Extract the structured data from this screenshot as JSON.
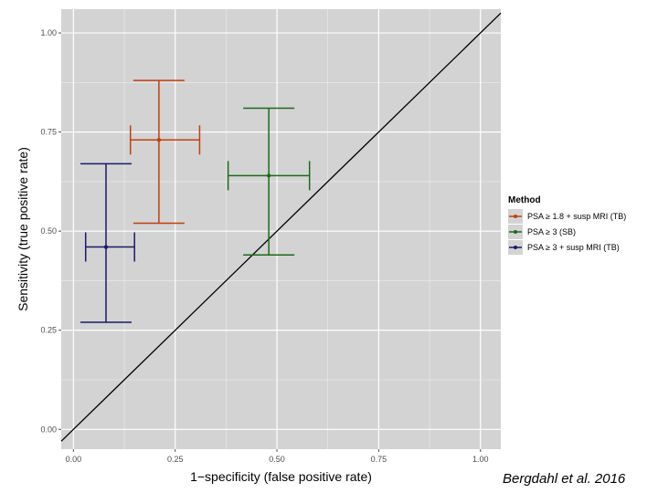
{
  "colors": {
    "panel": "#d3d3d3",
    "grid": "#ffffff",
    "diagonal": "#000000",
    "series": [
      "#c0400f",
      "#1a6b1a",
      "#1a1a6b"
    ]
  },
  "chart_data": {
    "type": "scatter",
    "title": "",
    "xlabel": "1−specificity (false positive rate)",
    "ylabel": "Sensitivity (true positive rate)",
    "xlim": [
      -0.03,
      1.05
    ],
    "ylim": [
      -0.05,
      1.06
    ],
    "xticks": [
      "0.00",
      "0.25",
      "0.50",
      "0.75",
      "1.00"
    ],
    "yticks": [
      "0.00",
      "0.25",
      "0.50",
      "0.75",
      "1.00"
    ],
    "grid": true,
    "reference_line": "diagonal y = x",
    "legend": {
      "title": "Method",
      "placement": "right"
    },
    "series": [
      {
        "name": "PSA ≥ 1.8 + susp MRI (TB)",
        "x": 0.21,
        "y": 0.73,
        "x_low": 0.14,
        "x_high": 0.31,
        "y_low": 0.52,
        "y_high": 0.88
      },
      {
        "name": "PSA ≥ 3 (SB)",
        "x": 0.48,
        "y": 0.64,
        "x_low": 0.38,
        "x_high": 0.58,
        "y_low": 0.44,
        "y_high": 0.81
      },
      {
        "name": "PSA ≥ 3 + susp MRI (TB)",
        "x": 0.08,
        "y": 0.46,
        "x_low": 0.03,
        "x_high": 0.15,
        "y_low": 0.27,
        "y_high": 0.67
      }
    ]
  },
  "caption": "Bergdahl et al. 2016"
}
